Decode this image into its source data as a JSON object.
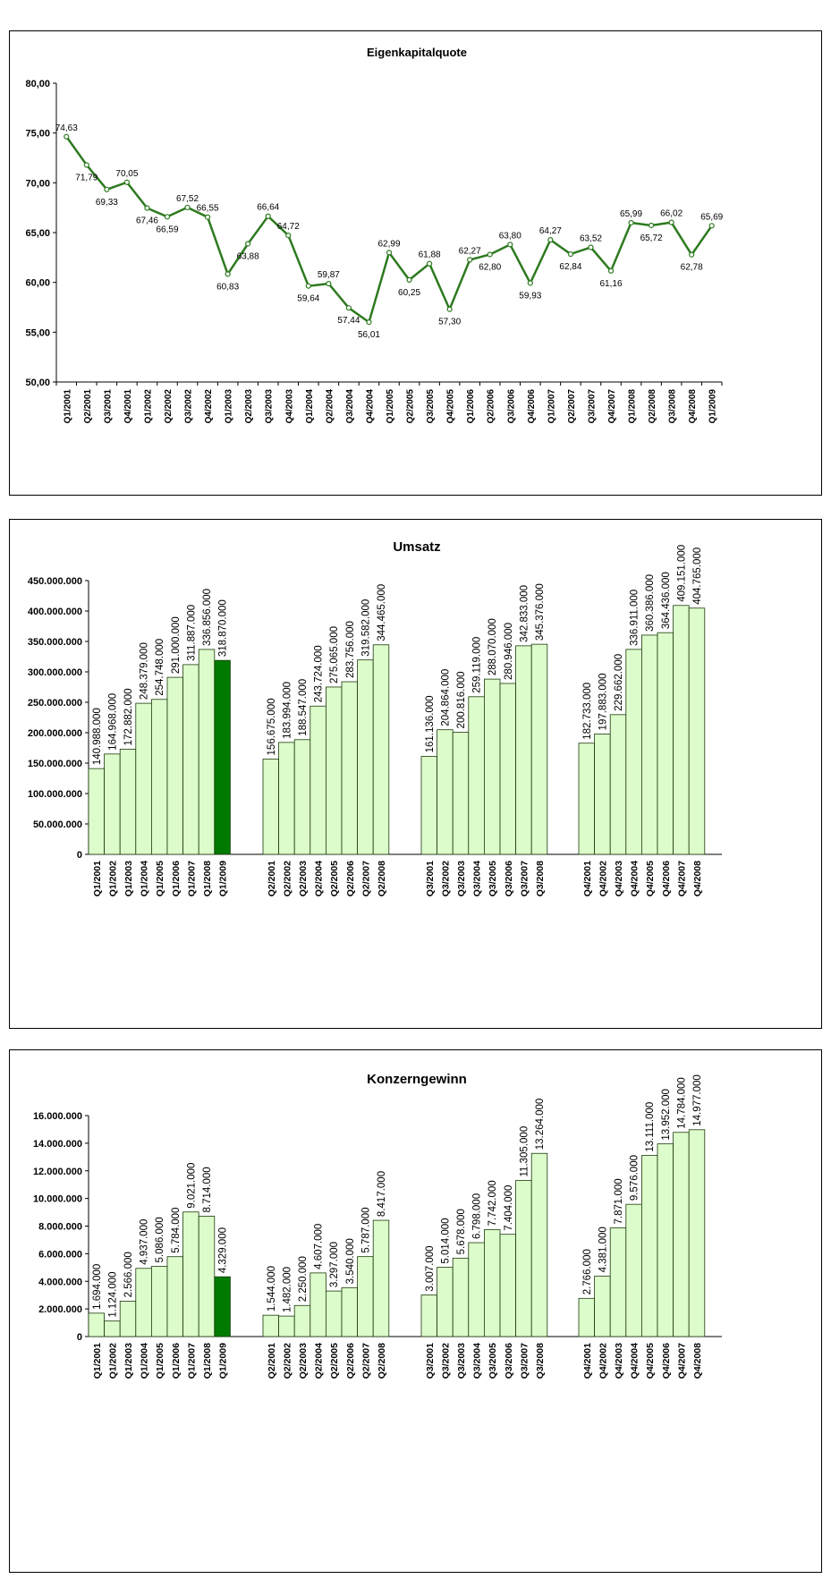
{
  "colors": {
    "line": "#2d7a1f",
    "bar_fill": "#ddfccb",
    "bar_highlight": "#007a00",
    "bar_stroke": "#1a3a0a",
    "axis": "#000000"
  },
  "chart_data": [
    {
      "type": "line",
      "title": "Eigenkapitalquote",
      "ylim": [
        50,
        80
      ],
      "yticks": [
        "50,00",
        "55,00",
        "60,00",
        "65,00",
        "70,00",
        "75,00",
        "80,00"
      ],
      "yticks_values": [
        50,
        55,
        60,
        65,
        70,
        75,
        80
      ],
      "categories": [
        "Q1/2001",
        "Q2/2001",
        "Q3/2001",
        "Q4/2001",
        "Q1/2002",
        "Q2/2002",
        "Q3/2002",
        "Q4/2002",
        "Q1/2003",
        "Q2/2003",
        "Q3/2003",
        "Q4/2003",
        "Q1/2004",
        "Q2/2004",
        "Q3/2004",
        "Q4/2004",
        "Q1/2005",
        "Q2/2005",
        "Q3/2005",
        "Q4/2005",
        "Q1/2006",
        "Q2/2006",
        "Q3/2006",
        "Q4/2006",
        "Q1/2007",
        "Q2/2007",
        "Q3/2007",
        "Q4/2007",
        "Q1/2008",
        "Q2/2008",
        "Q3/2008",
        "Q4/2008",
        "Q1/2009"
      ],
      "values": [
        74.63,
        71.79,
        69.33,
        70.05,
        67.46,
        66.59,
        67.52,
        66.55,
        60.83,
        63.88,
        66.64,
        64.72,
        59.64,
        59.87,
        57.44,
        56.01,
        62.99,
        60.25,
        61.88,
        57.3,
        62.27,
        62.8,
        63.8,
        59.93,
        64.27,
        62.84,
        63.52,
        61.16,
        65.99,
        65.72,
        66.02,
        62.78,
        65.69
      ],
      "labels": [
        "74,63",
        "71,79",
        "69,33",
        "70,05",
        "67,46",
        "66,59",
        "67,52",
        "66,55",
        "60,83",
        "63,88",
        "66,64",
        "64,72",
        "59,64",
        "59,87",
        "57,44",
        "56,01",
        "62,99",
        "60,25",
        "61,88",
        "57,30",
        "62,27",
        "62,80",
        "63,80",
        "59,93",
        "64,27",
        "62,84",
        "63,52",
        "61,16",
        "65,99",
        "65,72",
        "66,02",
        "62,78",
        "65,69"
      ]
    },
    {
      "type": "bar",
      "title": "Umsatz",
      "ylim": [
        0,
        450000000
      ],
      "yticks": [
        "0",
        "50.000.000",
        "100.000.000",
        "150.000.000",
        "200.000.000",
        "250.000.000",
        "300.000.000",
        "350.000.000",
        "400.000.000",
        "450.000.000"
      ],
      "yticks_values": [
        0,
        50000000,
        100000000,
        150000000,
        200000000,
        250000000,
        300000000,
        350000000,
        400000000,
        450000000
      ],
      "groups": [
        {
          "categories": [
            "Q1/2001",
            "Q1/2002",
            "Q1/2003",
            "Q1/2004",
            "Q1/2005",
            "Q1/2006",
            "Q1/2007",
            "Q1/2008",
            "Q1/2009"
          ],
          "values": [
            140988000,
            164968000,
            172882000,
            248379000,
            254748000,
            291000000,
            311887000,
            336856000,
            318870000
          ],
          "labels": [
            "140.988.000",
            "164.968.000",
            "172.882.000",
            "248.379.000",
            "254.748.000",
            "291.000.000",
            "311.887.000",
            "336.856.000",
            "318.870.000"
          ],
          "highlight": [
            false,
            false,
            false,
            false,
            false,
            false,
            false,
            false,
            true
          ]
        },
        {
          "categories": [
            "Q2/2001",
            "Q2/2002",
            "Q2/2003",
            "Q2/2004",
            "Q2/2005",
            "Q2/2006",
            "Q2/2007",
            "Q2/2008"
          ],
          "values": [
            156675000,
            183994000,
            188547000,
            243724000,
            275065000,
            283756000,
            319582000,
            344465000
          ],
          "labels": [
            "156.675.000",
            "183.994.000",
            "188.547.000",
            "243.724.000",
            "275.065.000",
            "283.756.000",
            "319.582.000",
            "344.465.000"
          ]
        },
        {
          "categories": [
            "Q3/2001",
            "Q3/2002",
            "Q3/2003",
            "Q3/2004",
            "Q3/2005",
            "Q3/2006",
            "Q3/2007",
            "Q3/2008"
          ],
          "values": [
            161136000,
            204864000,
            200816000,
            259119000,
            288070000,
            280946000,
            342833000,
            345376000
          ],
          "labels": [
            "161.136.000",
            "204.864.000",
            "200.816.000",
            "259.119.000",
            "288.070.000",
            "280.946.000",
            "342.833.000",
            "345.376.000"
          ]
        },
        {
          "categories": [
            "Q4/2001",
            "Q4/2002",
            "Q4/2003",
            "Q4/2004",
            "Q4/2005",
            "Q4/2006",
            "Q4/2007",
            "Q4/2008"
          ],
          "values": [
            182733000,
            197883000,
            229662000,
            336911000,
            360386000,
            364436000,
            409151000,
            404765000
          ],
          "labels": [
            "182.733.000",
            "197.883.000",
            "229.662.000",
            "336.911.000",
            "360.386.000",
            "364.436.000",
            "409.151.000",
            "404.765.000"
          ]
        }
      ]
    },
    {
      "type": "bar",
      "title": "Konzerngewinn",
      "ylim": [
        0,
        16000000
      ],
      "yticks": [
        "0",
        "2.000.000",
        "4.000.000",
        "6.000.000",
        "8.000.000",
        "10.000.000",
        "12.000.000",
        "14.000.000",
        "16.000.000"
      ],
      "yticks_values": [
        0,
        2000000,
        4000000,
        6000000,
        8000000,
        10000000,
        12000000,
        14000000,
        16000000
      ],
      "groups": [
        {
          "categories": [
            "Q1/2001",
            "Q1/2002",
            "Q1/2003",
            "Q1/2004",
            "Q1/2005",
            "Q1/2006",
            "Q1/2007",
            "Q1/2008",
            "Q1/2009"
          ],
          "values": [
            1694000,
            1124000,
            2566000,
            4937000,
            5086000,
            5784000,
            9021000,
            8714000,
            4329000
          ],
          "labels": [
            "1.694.000",
            "1.124.000",
            "2.566.000",
            "4.937.000",
            "5.086.000",
            "5.784.000",
            "9.021.000",
            "8.714.000",
            "4.329.000"
          ],
          "highlight": [
            false,
            false,
            false,
            false,
            false,
            false,
            false,
            false,
            true
          ]
        },
        {
          "categories": [
            "Q2/2001",
            "Q2/2002",
            "Q2/2003",
            "Q2/2004",
            "Q2/2005",
            "Q2/2006",
            "Q2/2007",
            "Q2/2008"
          ],
          "values": [
            1544000,
            1482000,
            2250000,
            4607000,
            3297000,
            3540000,
            5787000,
            8417000
          ],
          "labels": [
            "1.544.000",
            "1.482.000",
            "2.250.000",
            "4.607.000",
            "3.297.000",
            "3.540.000",
            "5.787.000",
            "8.417.000"
          ]
        },
        {
          "categories": [
            "Q3/2001",
            "Q3/2002",
            "Q3/2003",
            "Q3/2004",
            "Q3/2005",
            "Q3/2006",
            "Q3/2007",
            "Q3/2008"
          ],
          "values": [
            3007000,
            5014000,
            5678000,
            6798000,
            7742000,
            7404000,
            11305000,
            13264000
          ],
          "labels": [
            "3.007.000",
            "5.014.000",
            "5.678.000",
            "6.798.000",
            "7.742.000",
            "7.404.000",
            "11.305.000",
            "13.264.000"
          ]
        },
        {
          "categories": [
            "Q4/2001",
            "Q4/2002",
            "Q4/2003",
            "Q4/2004",
            "Q4/2005",
            "Q4/2006",
            "Q4/2007",
            "Q4/2008"
          ],
          "values": [
            2766000,
            4381000,
            7871000,
            9576000,
            13111000,
            13952000,
            14784000,
            14977000
          ],
          "labels": [
            "2.766.000",
            "4.381.000",
            "7.871.000",
            "9.576.000",
            "13.111.000",
            "13.952.000",
            "14.784.000",
            "14.977.000"
          ]
        }
      ]
    }
  ]
}
